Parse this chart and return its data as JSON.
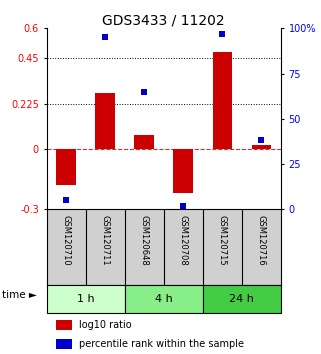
{
  "title": "GDS3433 / 11202",
  "samples": [
    "GSM120710",
    "GSM120711",
    "GSM120648",
    "GSM120708",
    "GSM120715",
    "GSM120716"
  ],
  "log10_ratio": [
    -0.18,
    0.28,
    0.07,
    -0.22,
    0.48,
    0.02
  ],
  "percentile_rank": [
    5,
    95,
    65,
    2,
    97,
    38
  ],
  "groups": [
    {
      "label": "1 h",
      "samples": [
        0,
        1
      ],
      "color": "#ccffcc"
    },
    {
      "label": "4 h",
      "samples": [
        2,
        3
      ],
      "color": "#88ee88"
    },
    {
      "label": "24 h",
      "samples": [
        4,
        5
      ],
      "color": "#44cc44"
    }
  ],
  "ylim_left": [
    -0.3,
    0.6
  ],
  "ylim_right": [
    0,
    100
  ],
  "yticks_left": [
    -0.3,
    0,
    0.225,
    0.45,
    0.6
  ],
  "yticks_right": [
    0,
    25,
    50,
    75,
    100
  ],
  "hlines": [
    0.45,
    0.225
  ],
  "bar_color": "#cc0000",
  "dot_color": "#0000cc",
  "bar_width": 0.5,
  "dot_size": 22,
  "background_color": "#ffffff",
  "title_fontsize": 10,
  "tick_fontsize": 7,
  "sample_fontsize": 6,
  "legend_fontsize": 7,
  "group_fontsize": 8
}
